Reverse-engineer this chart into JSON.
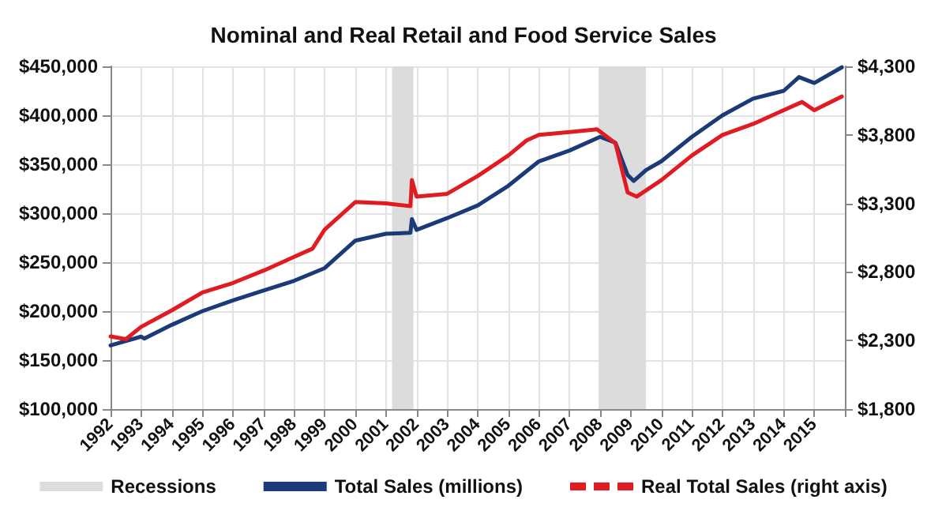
{
  "chart_data": {
    "type": "line",
    "title": "Nominal and Real Retail and Food Service Sales",
    "xlim": [
      1992,
      2016
    ],
    "xticks": [
      1992,
      1993,
      1994,
      1995,
      1996,
      1997,
      1998,
      1999,
      2000,
      2001,
      2002,
      2003,
      2004,
      2005,
      2006,
      2007,
      2008,
      2009,
      2010,
      2011,
      2012,
      2013,
      2014,
      2015,
      {
        "value": 2016,
        "label": null
      }
    ],
    "ylim": [
      100000,
      450000
    ],
    "yticks": [
      {
        "value": 100000,
        "label": "$100,000"
      },
      {
        "value": 150000,
        "label": "$150,000"
      },
      {
        "value": 200000,
        "label": "$200,000"
      },
      {
        "value": 250000,
        "label": "$250,000"
      },
      {
        "value": 300000,
        "label": "$300,000"
      },
      {
        "value": 350000,
        "label": "$350,000"
      },
      {
        "value": 400000,
        "label": "$400,000"
      },
      {
        "value": 450000,
        "label": "$450,000"
      }
    ],
    "y2lim": [
      1800,
      4300
    ],
    "y2ticks": [
      {
        "value": 1800,
        "label": "$1,800"
      },
      {
        "value": 2300,
        "label": "$2,300"
      },
      {
        "value": 2800,
        "label": "$2,800"
      },
      {
        "value": 3300,
        "label": "$3,300"
      },
      {
        "value": 3800,
        "label": "$3,800"
      },
      {
        "value": 4300,
        "label": "$4,300"
      }
    ],
    "series": [
      {
        "name": "Total Sales (millions)",
        "color": "#1b3a78",
        "x": [
          1992,
          1993,
          1993.1,
          1994,
          1995,
          1996,
          1997,
          1998,
          1999,
          2000,
          2001,
          2001.8,
          2001.85,
          2002,
          2003,
          2004,
          2005,
          2006,
          2007,
          2008,
          2008.5,
          2008.9,
          2009.1,
          2009.5,
          2010,
          2011,
          2012,
          2013,
          2014,
          2014.5,
          2015,
          2015.9
        ],
        "values": [
          165000,
          174000,
          172000,
          186000,
          200000,
          211000,
          221000,
          231000,
          244000,
          272000,
          279000,
          280000,
          294000,
          283000,
          295000,
          308000,
          328000,
          353000,
          364000,
          378000,
          372000,
          339000,
          333000,
          344000,
          353000,
          378000,
          400000,
          417000,
          425000,
          439000,
          433000,
          449000
        ]
      },
      {
        "name": "Real Total Sales (right axis)",
        "color": "#e01b22",
        "axis": "y2",
        "x": [
          1992,
          1992.5,
          1993,
          1994,
          1995,
          1996,
          1997,
          1998,
          1998.6,
          1999,
          2000,
          2001,
          2001.8,
          2001.85,
          2002,
          2003,
          2004,
          2005,
          2005.6,
          2006,
          2007,
          2007.9,
          2008.5,
          2008.9,
          2009.2,
          2010,
          2011,
          2012,
          2013,
          2014,
          2014.6,
          2015,
          2015.9
        ],
        "values": [
          2330,
          2310,
          2400,
          2520,
          2650,
          2720,
          2810,
          2910,
          2970,
          3110,
          3310,
          3300,
          3280,
          3470,
          3350,
          3370,
          3500,
          3650,
          3760,
          3800,
          3820,
          3840,
          3740,
          3380,
          3350,
          3470,
          3650,
          3800,
          3880,
          3980,
          4040,
          3980,
          4080
        ]
      }
    ],
    "bands": [
      {
        "axis": "x",
        "from": 2001.2,
        "to": 2001.9,
        "label": "Recessions",
        "color": "#dcdcdc"
      },
      {
        "axis": "x",
        "from": 2007.95,
        "to": 2009.5,
        "color": "#dcdcdc"
      }
    ],
    "grid": true,
    "legend": "bottom",
    "marker": "none",
    "line_style": "solid"
  }
}
